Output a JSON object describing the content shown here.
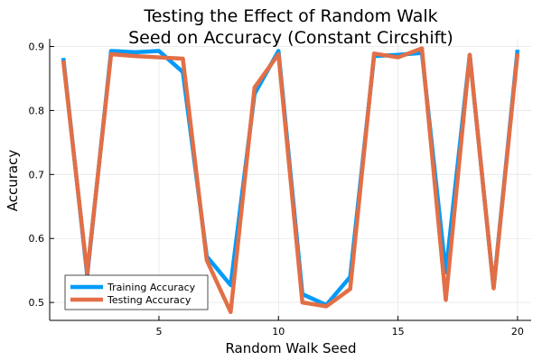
{
  "chart_data": {
    "type": "line",
    "title": [
      "Testing the Effect of Random Walk",
      "Seed on Accuracy (Constant Circshift)"
    ],
    "xlabel": "Random Walk Seed",
    "ylabel": "Accuracy",
    "xlim": [
      0.43,
      20.57
    ],
    "ylim": [
      0.472,
      0.912
    ],
    "xticks": [
      5,
      10,
      15,
      20
    ],
    "yticks": [
      0.5,
      0.6,
      0.7,
      0.8,
      0.9
    ],
    "xtick_labels": [
      "5",
      "10",
      "15",
      "20"
    ],
    "ytick_labels": [
      "0.5",
      "0.6",
      "0.7",
      "0.8",
      "0.9"
    ],
    "grid": true,
    "legend_position": "bottom-left",
    "x": [
      1,
      2,
      3,
      4,
      5,
      6,
      7,
      8,
      9,
      10,
      11,
      12,
      13,
      14,
      15,
      16,
      17,
      18,
      19,
      20
    ],
    "series": [
      {
        "name": "Training Accuracy",
        "color": "#009af9",
        "values": [
          0.882,
          0.542,
          0.893,
          0.891,
          0.893,
          0.86,
          0.572,
          0.527,
          0.826,
          0.893,
          0.513,
          0.496,
          0.54,
          0.885,
          0.887,
          0.89,
          0.547,
          0.887,
          0.523,
          0.895
        ]
      },
      {
        "name": "Testing Accuracy",
        "color": "#e26f46",
        "values": [
          0.878,
          0.546,
          0.888,
          0.885,
          0.883,
          0.881,
          0.566,
          0.485,
          0.836,
          0.888,
          0.5,
          0.494,
          0.521,
          0.889,
          0.883,
          0.897,
          0.504,
          0.887,
          0.522,
          0.889
        ]
      }
    ]
  }
}
